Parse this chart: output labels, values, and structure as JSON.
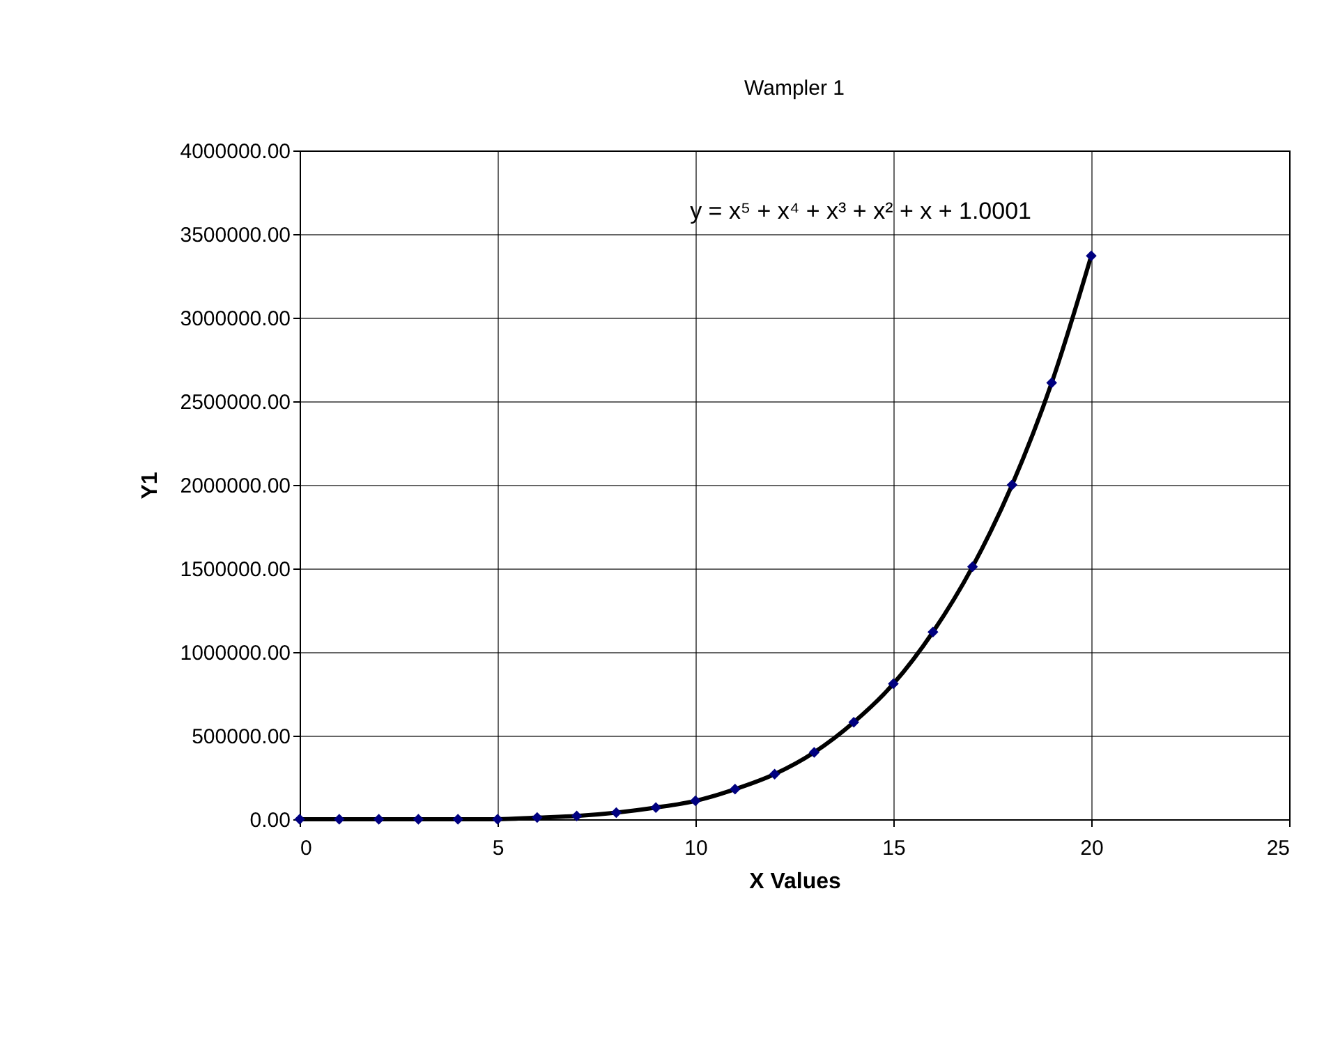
{
  "chart_data": {
    "type": "scatter",
    "title": "Wampler 1",
    "xlabel": "X Values",
    "ylabel": "Y1",
    "x": [
      0,
      1,
      2,
      3,
      4,
      5,
      6,
      7,
      8,
      9,
      10,
      11,
      12,
      13,
      14,
      15,
      16,
      17,
      18,
      19,
      20
    ],
    "series": [
      {
        "type": "line",
        "color": "#000000",
        "marker": "none",
        "values": [
          0,
          0,
          0,
          0,
          0,
          0,
          10000,
          20000,
          40000,
          70000,
          110000,
          180000,
          270000,
          400000,
          580000,
          810000,
          1120000,
          1510000,
          2000000,
          2610000,
          3370000
        ]
      },
      {
        "color": "#000080",
        "marker": "diamond",
        "values": [
          0,
          0,
          0,
          0,
          0,
          0,
          10000,
          20000,
          40000,
          70000,
          110000,
          180000,
          270000,
          400000,
          580000,
          810000,
          1120000,
          1510000,
          2000000,
          2610000,
          3370000
        ]
      }
    ],
    "annotations": [
      "y = x⁵ + x⁴ + x³ + x² + x + 1.0001"
    ],
    "xlim": [
      0,
      25
    ],
    "xticks": [
      0,
      5,
      10,
      15,
      20,
      25
    ],
    "ylim": [
      0,
      4000000
    ],
    "yticks": [
      {
        "value": 0,
        "label": "0.00"
      },
      {
        "value": 500000,
        "label": "500000.00"
      },
      {
        "value": 1000000,
        "label": "1000000.00"
      },
      {
        "value": 1500000,
        "label": "1500000.00"
      },
      {
        "value": 2000000,
        "label": "2000000.00"
      },
      {
        "value": 2500000,
        "label": "2500000.00"
      },
      {
        "value": 3000000,
        "label": "3000000.00"
      },
      {
        "value": 3500000,
        "label": "3500000.00"
      },
      {
        "value": 4000000,
        "label": "4000000.00"
      }
    ],
    "grid": true
  }
}
